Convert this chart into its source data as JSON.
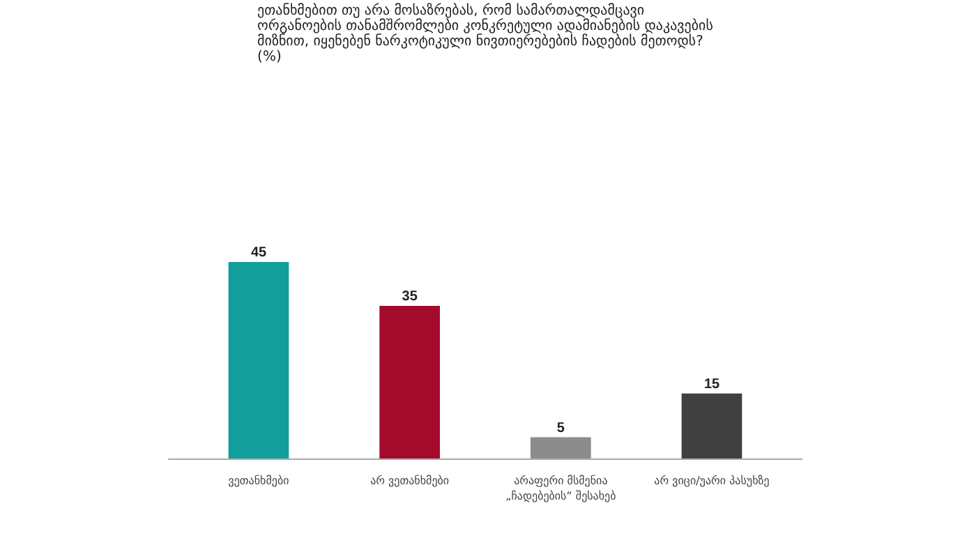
{
  "chart_data": {
    "type": "bar",
    "title": "ეთანხმებით თუ არა მოსაზრებას, რომ სამართალდამცავი ორგანოების თანამშრომლები კონკრეტული ადამიანების დაკავების მიზნით, იყენებენ ნარკოტიკული ნივთიერებების ჩადების მეთოდს? (%)",
    "categories": [
      "ვეთანხმები",
      "არ ვეთანხმები",
      "არაფერი მსმენია „ჩადებების“ შესახებ",
      "არ ვიცი/უარი პასუხზე"
    ],
    "values": [
      45,
      35,
      5,
      15
    ],
    "colors": [
      "#129e9b",
      "#a30a2c",
      "#8c8c8c",
      "#404040"
    ],
    "data_labels": true,
    "grid": false
  }
}
